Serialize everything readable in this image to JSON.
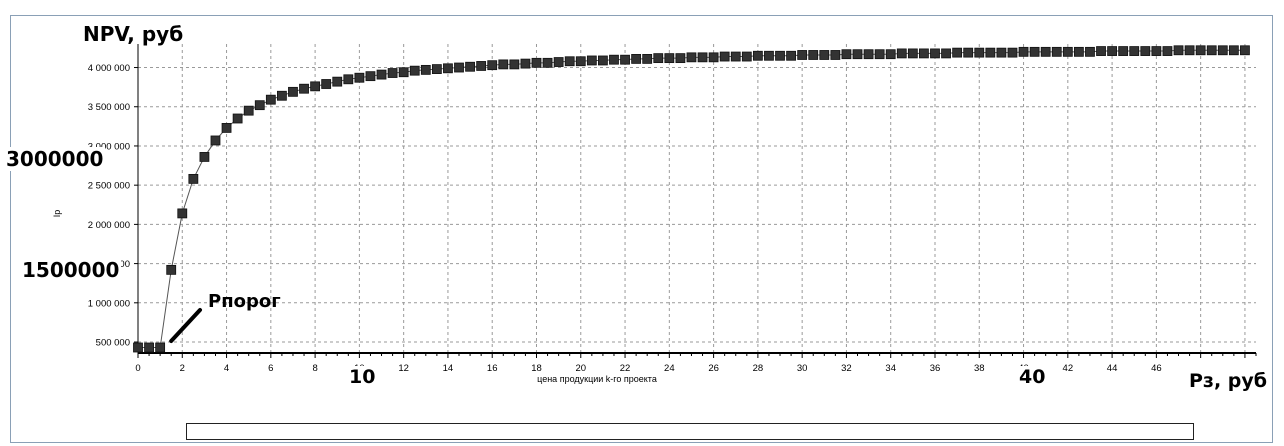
{
  "colors": {
    "frame_border": "#8aa0b6",
    "marker": "#333333",
    "line": "#555555",
    "grid": "#9a9a9a"
  },
  "annotations": {
    "y_caption": "NPV, руб",
    "label_3000000": "3000000",
    "label_1500000": "1500000",
    "threshold": "Рпорог",
    "label_10": "10",
    "label_40": "40",
    "x_caption": "Рз, руб"
  },
  "chart_data": {
    "type": "line",
    "xlabel": "цена продукции k-го проекта",
    "ylabel": "Ip",
    "xlim": [
      0,
      50.5
    ],
    "ylim": [
      360000,
      4300000
    ],
    "x_ticks": [
      0,
      2,
      4,
      6,
      8,
      10,
      12,
      14,
      16,
      18,
      20,
      22,
      24,
      26,
      28,
      30,
      32,
      34,
      36,
      38,
      40,
      42,
      44,
      46
    ],
    "x_tick_labels": [
      "0",
      "2",
      "4",
      "6",
      "8",
      "10",
      "12",
      "14",
      "16",
      "18",
      "20",
      "22",
      "24",
      "26",
      "28",
      "30",
      "32",
      "34",
      "36",
      "38",
      "40",
      "42",
      "44",
      "46"
    ],
    "y_ticks": [
      500000,
      1000000,
      1500000,
      2000000,
      2500000,
      3000000,
      3500000,
      4000000
    ],
    "y_tick_labels": [
      "500 000",
      "1 000 000",
      "1 500 000",
      "2 000 000",
      "2 500 000",
      "3 000 000",
      "3 500 000",
      "4 000 000"
    ],
    "grid": true,
    "grid_style": "dashed",
    "marker": "square",
    "series": [
      {
        "x": [
          0,
          0.5,
          1,
          1.5,
          2,
          2.5,
          3,
          3.5,
          4,
          4.5,
          5,
          5.5,
          6,
          6.5,
          7,
          7.5,
          8,
          8.5,
          9,
          9.5,
          10,
          10.5,
          11,
          11.5,
          12,
          12.5,
          13,
          13.5,
          14,
          14.5,
          15,
          15.5,
          16,
          16.5,
          17,
          17.5,
          18,
          18.5,
          19,
          19.5,
          20,
          20.5,
          21,
          21.5,
          22,
          22.5,
          23,
          23.5,
          24,
          24.5,
          25,
          25.5,
          26,
          26.5,
          27,
          27.5,
          28,
          28.5,
          29,
          29.5,
          30,
          30.5,
          31,
          31.5,
          32,
          32.5,
          33,
          33.5,
          34,
          34.5,
          35,
          35.5,
          36,
          36.5,
          37,
          37.5,
          38,
          38.5,
          39,
          39.5,
          40,
          40.5,
          41,
          41.5,
          42,
          42.5,
          43,
          43.5,
          44,
          44.5,
          45,
          45.5,
          46,
          46.5,
          47,
          47.5,
          48,
          48.5,
          49,
          49.5,
          50
        ],
        "values": [
          430000,
          430000,
          430000,
          1420000,
          2140000,
          2580000,
          2860000,
          3070000,
          3230000,
          3350000,
          3450000,
          3520000,
          3590000,
          3640000,
          3690000,
          3730000,
          3760000,
          3790000,
          3820000,
          3850000,
          3870000,
          3890000,
          3910000,
          3930000,
          3940000,
          3960000,
          3970000,
          3980000,
          3990000,
          4000000,
          4010000,
          4020000,
          4030000,
          4040000,
          4040000,
          4050000,
          4060000,
          4060000,
          4070000,
          4080000,
          4080000,
          4090000,
          4090000,
          4100000,
          4100000,
          4110000,
          4110000,
          4120000,
          4120000,
          4120000,
          4130000,
          4130000,
          4130000,
          4140000,
          4140000,
          4140000,
          4150000,
          4150000,
          4150000,
          4150000,
          4160000,
          4160000,
          4160000,
          4160000,
          4170000,
          4170000,
          4170000,
          4170000,
          4170000,
          4180000,
          4180000,
          4180000,
          4180000,
          4180000,
          4190000,
          4190000,
          4190000,
          4190000,
          4190000,
          4190000,
          4200000,
          4200000,
          4200000,
          4200000,
          4200000,
          4200000,
          4200000,
          4210000,
          4210000,
          4210000,
          4210000,
          4210000,
          4210000,
          4210000,
          4220000,
          4220000,
          4220000,
          4220000,
          4220000,
          4220000,
          4220000
        ]
      }
    ]
  }
}
